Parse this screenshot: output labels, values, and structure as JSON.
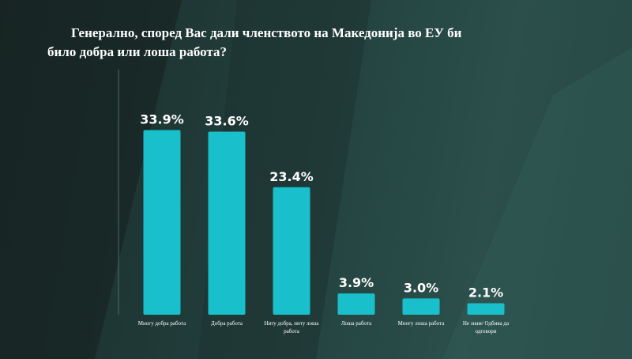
{
  "chart_data": {
    "type": "bar",
    "title": "Генерално, според Вас дали членството на Македонија во ЕУ би било добра или лоша работа?",
    "categories": [
      "Многу добра работа",
      "Добра работа",
      "Ниту добра, ниту лоша работа",
      "Лоша работа",
      "Многу лоша работа",
      "Не знам/ Одбива да одговори"
    ],
    "values": [
      33.9,
      33.6,
      23.4,
      3.9,
      3.0,
      2.1
    ],
    "value_labels": [
      "33.9%",
      "33.6%",
      "23.4%",
      "3.9%",
      "3.0%",
      "2.1%"
    ],
    "color": "#19c0cb",
    "ylim": [
      0,
      45
    ]
  }
}
